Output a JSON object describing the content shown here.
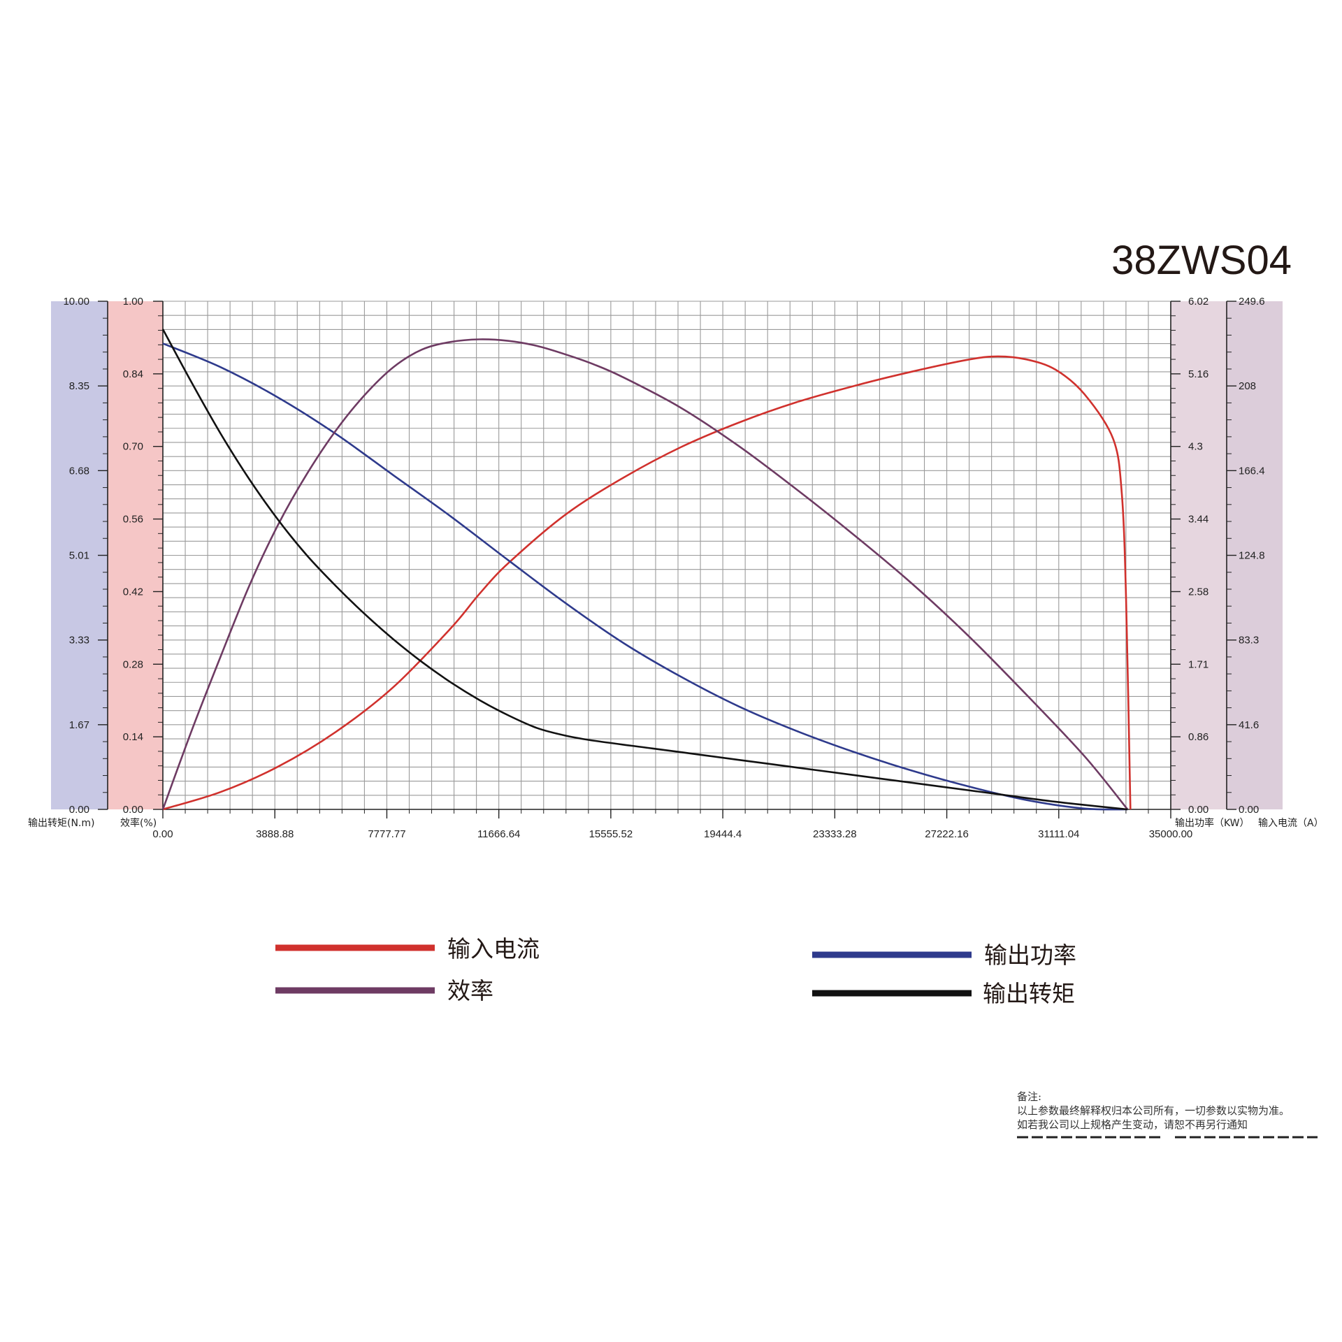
{
  "title": "38ZWS04",
  "colors": {
    "current": "#d0312d",
    "power": "#2e3a8c",
    "efficiency": "#6e3b63",
    "torque": "#111111",
    "band_torque": "#c8c8e4",
    "band_efficiency": "#f5c6c6",
    "band_power": "#e6d6df",
    "band_current": "#dccdda",
    "grid": "#9a9a9a"
  },
  "chart_data": {
    "type": "line",
    "x": {
      "range": [
        0,
        35000
      ],
      "ticks": [
        "0.00",
        "3888.88",
        "7777.77",
        "11666.64",
        "15555.52",
        "19444.4",
        "23333.28",
        "27222.16",
        "31111.04",
        "35000.00"
      ]
    },
    "axes": {
      "torque": {
        "label": "输出转矩(N.m)",
        "range": [
          0,
          10
        ],
        "ticks": [
          "0.00",
          "1.67",
          "3.33",
          "5.01",
          "6.68",
          "8.35",
          "10.00"
        ]
      },
      "efficiency": {
        "label": "效率(%)",
        "range": [
          0,
          1
        ],
        "ticks": [
          "0.00",
          "0.14",
          "0.28",
          "0.42",
          "0.56",
          "0.70",
          "0.84",
          "1.00"
        ]
      },
      "power": {
        "label": "输出功率（KW）",
        "range": [
          0,
          6.02
        ],
        "ticks": [
          "0.00",
          "0.86",
          "1.71",
          "2.58",
          "3.44",
          "4.3",
          "5.16",
          "6.02"
        ]
      },
      "current": {
        "label": "输入电流（A）",
        "range": [
          0,
          249.6
        ],
        "ticks": [
          "0.00",
          "41.6",
          "83.3",
          "124.8",
          "166.4",
          "208",
          "249.6"
        ]
      }
    },
    "series": [
      {
        "name": "输入电流",
        "axis": "current",
        "color_key": "current",
        "points": [
          [
            0,
            0
          ],
          [
            2000,
            8.5
          ],
          [
            4000,
            21
          ],
          [
            6000,
            38
          ],
          [
            8000,
            60
          ],
          [
            10000,
            89
          ],
          [
            11000,
            106
          ],
          [
            12000,
            121
          ],
          [
            14000,
            145
          ],
          [
            16000,
            163
          ],
          [
            18000,
            178
          ],
          [
            20000,
            190
          ],
          [
            22000,
            200
          ],
          [
            24000,
            208
          ],
          [
            26000,
            215
          ],
          [
            28000,
            221
          ],
          [
            29000,
            222.5
          ],
          [
            30000,
            221
          ],
          [
            31000,
            216
          ],
          [
            32000,
            204
          ],
          [
            33000,
            182
          ],
          [
            33300,
            155
          ],
          [
            33450,
            103
          ],
          [
            33600,
            0
          ]
        ]
      },
      {
        "name": "输出功率",
        "axis": "power",
        "color_key": "power",
        "points": [
          [
            0,
            5.52
          ],
          [
            2000,
            5.24
          ],
          [
            4000,
            4.88
          ],
          [
            6000,
            4.45
          ],
          [
            8000,
            3.96
          ],
          [
            10000,
            3.47
          ],
          [
            12000,
            2.95
          ],
          [
            14000,
            2.44
          ],
          [
            16000,
            1.97
          ],
          [
            18000,
            1.57
          ],
          [
            20000,
            1.22
          ],
          [
            22000,
            0.93
          ],
          [
            24000,
            0.68
          ],
          [
            26000,
            0.46
          ],
          [
            28000,
            0.27
          ],
          [
            30000,
            0.11
          ],
          [
            32000,
            0.01
          ],
          [
            33500,
            0
          ]
        ]
      },
      {
        "name": "效率",
        "axis": "efficiency",
        "color_key": "efficiency",
        "points": [
          [
            0,
            0
          ],
          [
            1000,
            0.155
          ],
          [
            2000,
            0.3
          ],
          [
            3000,
            0.44
          ],
          [
            4000,
            0.56
          ],
          [
            5000,
            0.66
          ],
          [
            6000,
            0.745
          ],
          [
            7000,
            0.815
          ],
          [
            8000,
            0.87
          ],
          [
            9000,
            0.905
          ],
          [
            10000,
            0.92
          ],
          [
            11000,
            0.925
          ],
          [
            12000,
            0.922
          ],
          [
            13000,
            0.912
          ],
          [
            14000,
            0.895
          ],
          [
            15000,
            0.875
          ],
          [
            16000,
            0.85
          ],
          [
            18000,
            0.79
          ],
          [
            20000,
            0.715
          ],
          [
            22000,
            0.63
          ],
          [
            24000,
            0.54
          ],
          [
            26000,
            0.445
          ],
          [
            28000,
            0.34
          ],
          [
            30000,
            0.225
          ],
          [
            32000,
            0.105
          ],
          [
            33500,
            0
          ]
        ]
      },
      {
        "name": "输出转矩",
        "axis": "torque",
        "color_key": "torque",
        "points": [
          [
            0,
            9.45
          ],
          [
            1000,
            8.4
          ],
          [
            2000,
            7.4
          ],
          [
            3000,
            6.5
          ],
          [
            4000,
            5.7
          ],
          [
            5000,
            5.0
          ],
          [
            6000,
            4.4
          ],
          [
            7000,
            3.85
          ],
          [
            8000,
            3.35
          ],
          [
            9000,
            2.9
          ],
          [
            10000,
            2.5
          ],
          [
            11000,
            2.15
          ],
          [
            12000,
            1.85
          ],
          [
            13000,
            1.6
          ],
          [
            14000,
            1.45
          ],
          [
            15000,
            1.35
          ],
          [
            17000,
            1.2
          ],
          [
            19000,
            1.05
          ],
          [
            21000,
            0.9
          ],
          [
            23000,
            0.75
          ],
          [
            25000,
            0.6
          ],
          [
            27000,
            0.45
          ],
          [
            29000,
            0.3
          ],
          [
            31000,
            0.15
          ],
          [
            33500,
            0
          ]
        ]
      }
    ],
    "legend": {
      "placement": "below",
      "items": [
        {
          "label": "输入电流",
          "color_key": "current"
        },
        {
          "label": "输出功率",
          "color_key": "power"
        },
        {
          "label": "效率",
          "color_key": "efficiency"
        },
        {
          "label": "输出转矩",
          "color_key": "torque"
        }
      ]
    },
    "grid": true
  },
  "note": {
    "heading": "备注:",
    "lines": [
      "以上参数最终解释权归本公司所有，一切参数以实物为准。",
      "如若我公司以上规格产生变动，请恕不再另行通知"
    ]
  }
}
